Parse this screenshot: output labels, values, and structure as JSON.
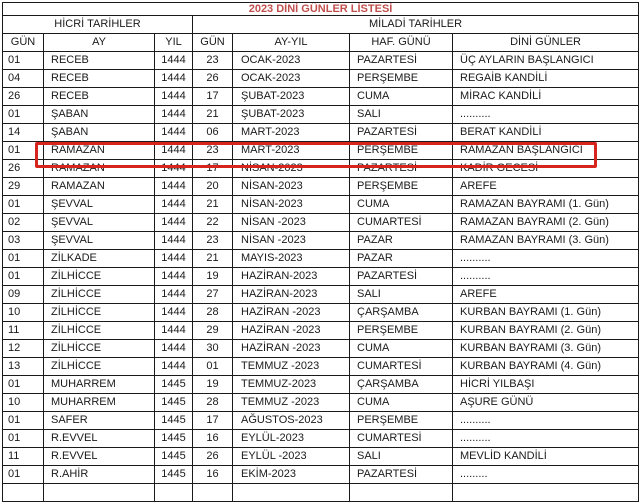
{
  "title": "2023 DİNİ GÜNLER LİSTESİ",
  "colors": {
    "title_red": "#C0504D",
    "highlight_red": "#D6251C",
    "border": "#1a1a1a"
  },
  "table": {
    "group_headers": [
      {
        "label": "HİCRİ TARİHLER",
        "span": 3
      },
      {
        "label": "MİLADİ TARİHLER",
        "span": 4
      }
    ],
    "columns": [
      "GÜN",
      "AY",
      "YIL",
      "GÜN",
      "AY-YIL",
      "HAF. GÜNÜ",
      "DİNİ GÜNLER"
    ],
    "highlighted_row_index": 5,
    "rows": [
      [
        "01",
        "RECEB",
        "1444",
        "23",
        "OCAK-2023",
        "PAZARTESİ",
        "ÜÇ AYLARIN BAŞLANGICI"
      ],
      [
        "04",
        "RECEB",
        "1444",
        "26",
        "OCAK-2023",
        "PERŞEMBE",
        "REGAİB KANDİLİ"
      ],
      [
        "26",
        "RECEB",
        "1444",
        "17",
        "ŞUBAT-2023",
        "CUMA",
        "MİRAC KANDİLİ"
      ],
      [
        "01",
        "ŞABAN",
        "1444",
        "21",
        "ŞUBAT-2023",
        "SALI",
        ".........."
      ],
      [
        "14",
        "ŞABAN",
        "1444",
        "06",
        "MART-2023",
        "PAZARTESİ",
        "BERAT KANDİLİ"
      ],
      [
        "01",
        "RAMAZAN",
        "1444",
        "23",
        "MART-2023",
        "PERŞEMBE",
        "RAMAZAN BAŞLANGICI"
      ],
      [
        "26",
        "RAMAZAN",
        "1444",
        "17",
        "NİSAN-2023",
        "PAZARTESİ",
        "KADİR GECESİ"
      ],
      [
        "29",
        "RAMAZAN",
        "1444",
        "20",
        "NİSAN-2023",
        "PERŞEMBE",
        "AREFE"
      ],
      [
        "01",
        "ŞEVVAL",
        "1444",
        "21",
        "NİSAN-2023",
        "CUMA",
        "RAMAZAN BAYRAMI (1. Gün)"
      ],
      [
        "02",
        "ŞEVVAL",
        "1444",
        "22",
        "NİSAN -2023",
        "CUMARTESİ",
        "RAMAZAN BAYRAMI (2. Gün)"
      ],
      [
        "03",
        "ŞEVVAL",
        "1444",
        "23",
        "NİSAN -2023",
        "PAZAR",
        "RAMAZAN BAYRAMI (3. Gün)"
      ],
      [
        "01",
        "ZİLKADE",
        "1444",
        "21",
        "MAYIS-2023",
        "PAZAR",
        ".........."
      ],
      [
        "01",
        "ZİLHİCCE",
        "1444",
        "19",
        "HAZİRAN-2023",
        "PAZARTESİ",
        ".........."
      ],
      [
        "09",
        "ZİLHİCCE",
        "1444",
        "27",
        "HAZİRAN-2023",
        "SALI",
        "AREFE"
      ],
      [
        "10",
        "ZİLHİCCE",
        "1444",
        "28",
        "HAZİRAN -2023",
        "ÇARŞAMBA",
        "KURBAN BAYRAMI (1. Gün)"
      ],
      [
        "11",
        "ZİLHİCCE",
        "1444",
        "29",
        "HAZİRAN -2023",
        "PERŞEMBE",
        "KURBAN BAYRAMI (2. Gün)"
      ],
      [
        "12",
        "ZİLHİCCE",
        "1444",
        "30",
        "HAZİRAN -2023",
        "CUMA",
        "KURBAN BAYRAMI (3. Gün)"
      ],
      [
        "13",
        "ZİLHİCCE",
        "1444",
        "01",
        "TEMMUZ -2023",
        "CUMARTESİ",
        "KURBAN BAYRAMI (4. Gün)"
      ],
      [
        "01",
        "MUHARREM",
        "1445",
        "19",
        "TEMMUZ-2023",
        "ÇARŞAMBA",
        "HİCRİ YILBAŞI"
      ],
      [
        "10",
        "MUHARREM",
        "1445",
        "28",
        "TEMMUZ -2023",
        "CUMA",
        "AŞURE GÜNÜ"
      ],
      [
        "01",
        "SAFER",
        "1445",
        "17",
        "AĞUSTOS-2023",
        "PERŞEMBE",
        ".........."
      ],
      [
        "01",
        "R.EVVEL",
        "1445",
        "16",
        "EYLÜL-2023",
        "CUMARTESİ",
        ".........."
      ],
      [
        "11",
        "R.EVVEL",
        "1445",
        "26",
        "EYLÜL -2023",
        "SALI",
        "MEVLİD KANDİLİ"
      ],
      [
        "01",
        "R.AHİR",
        "1445",
        "16",
        "EKİM-2023",
        "PAZARTESİ",
        "........."
      ]
    ]
  }
}
